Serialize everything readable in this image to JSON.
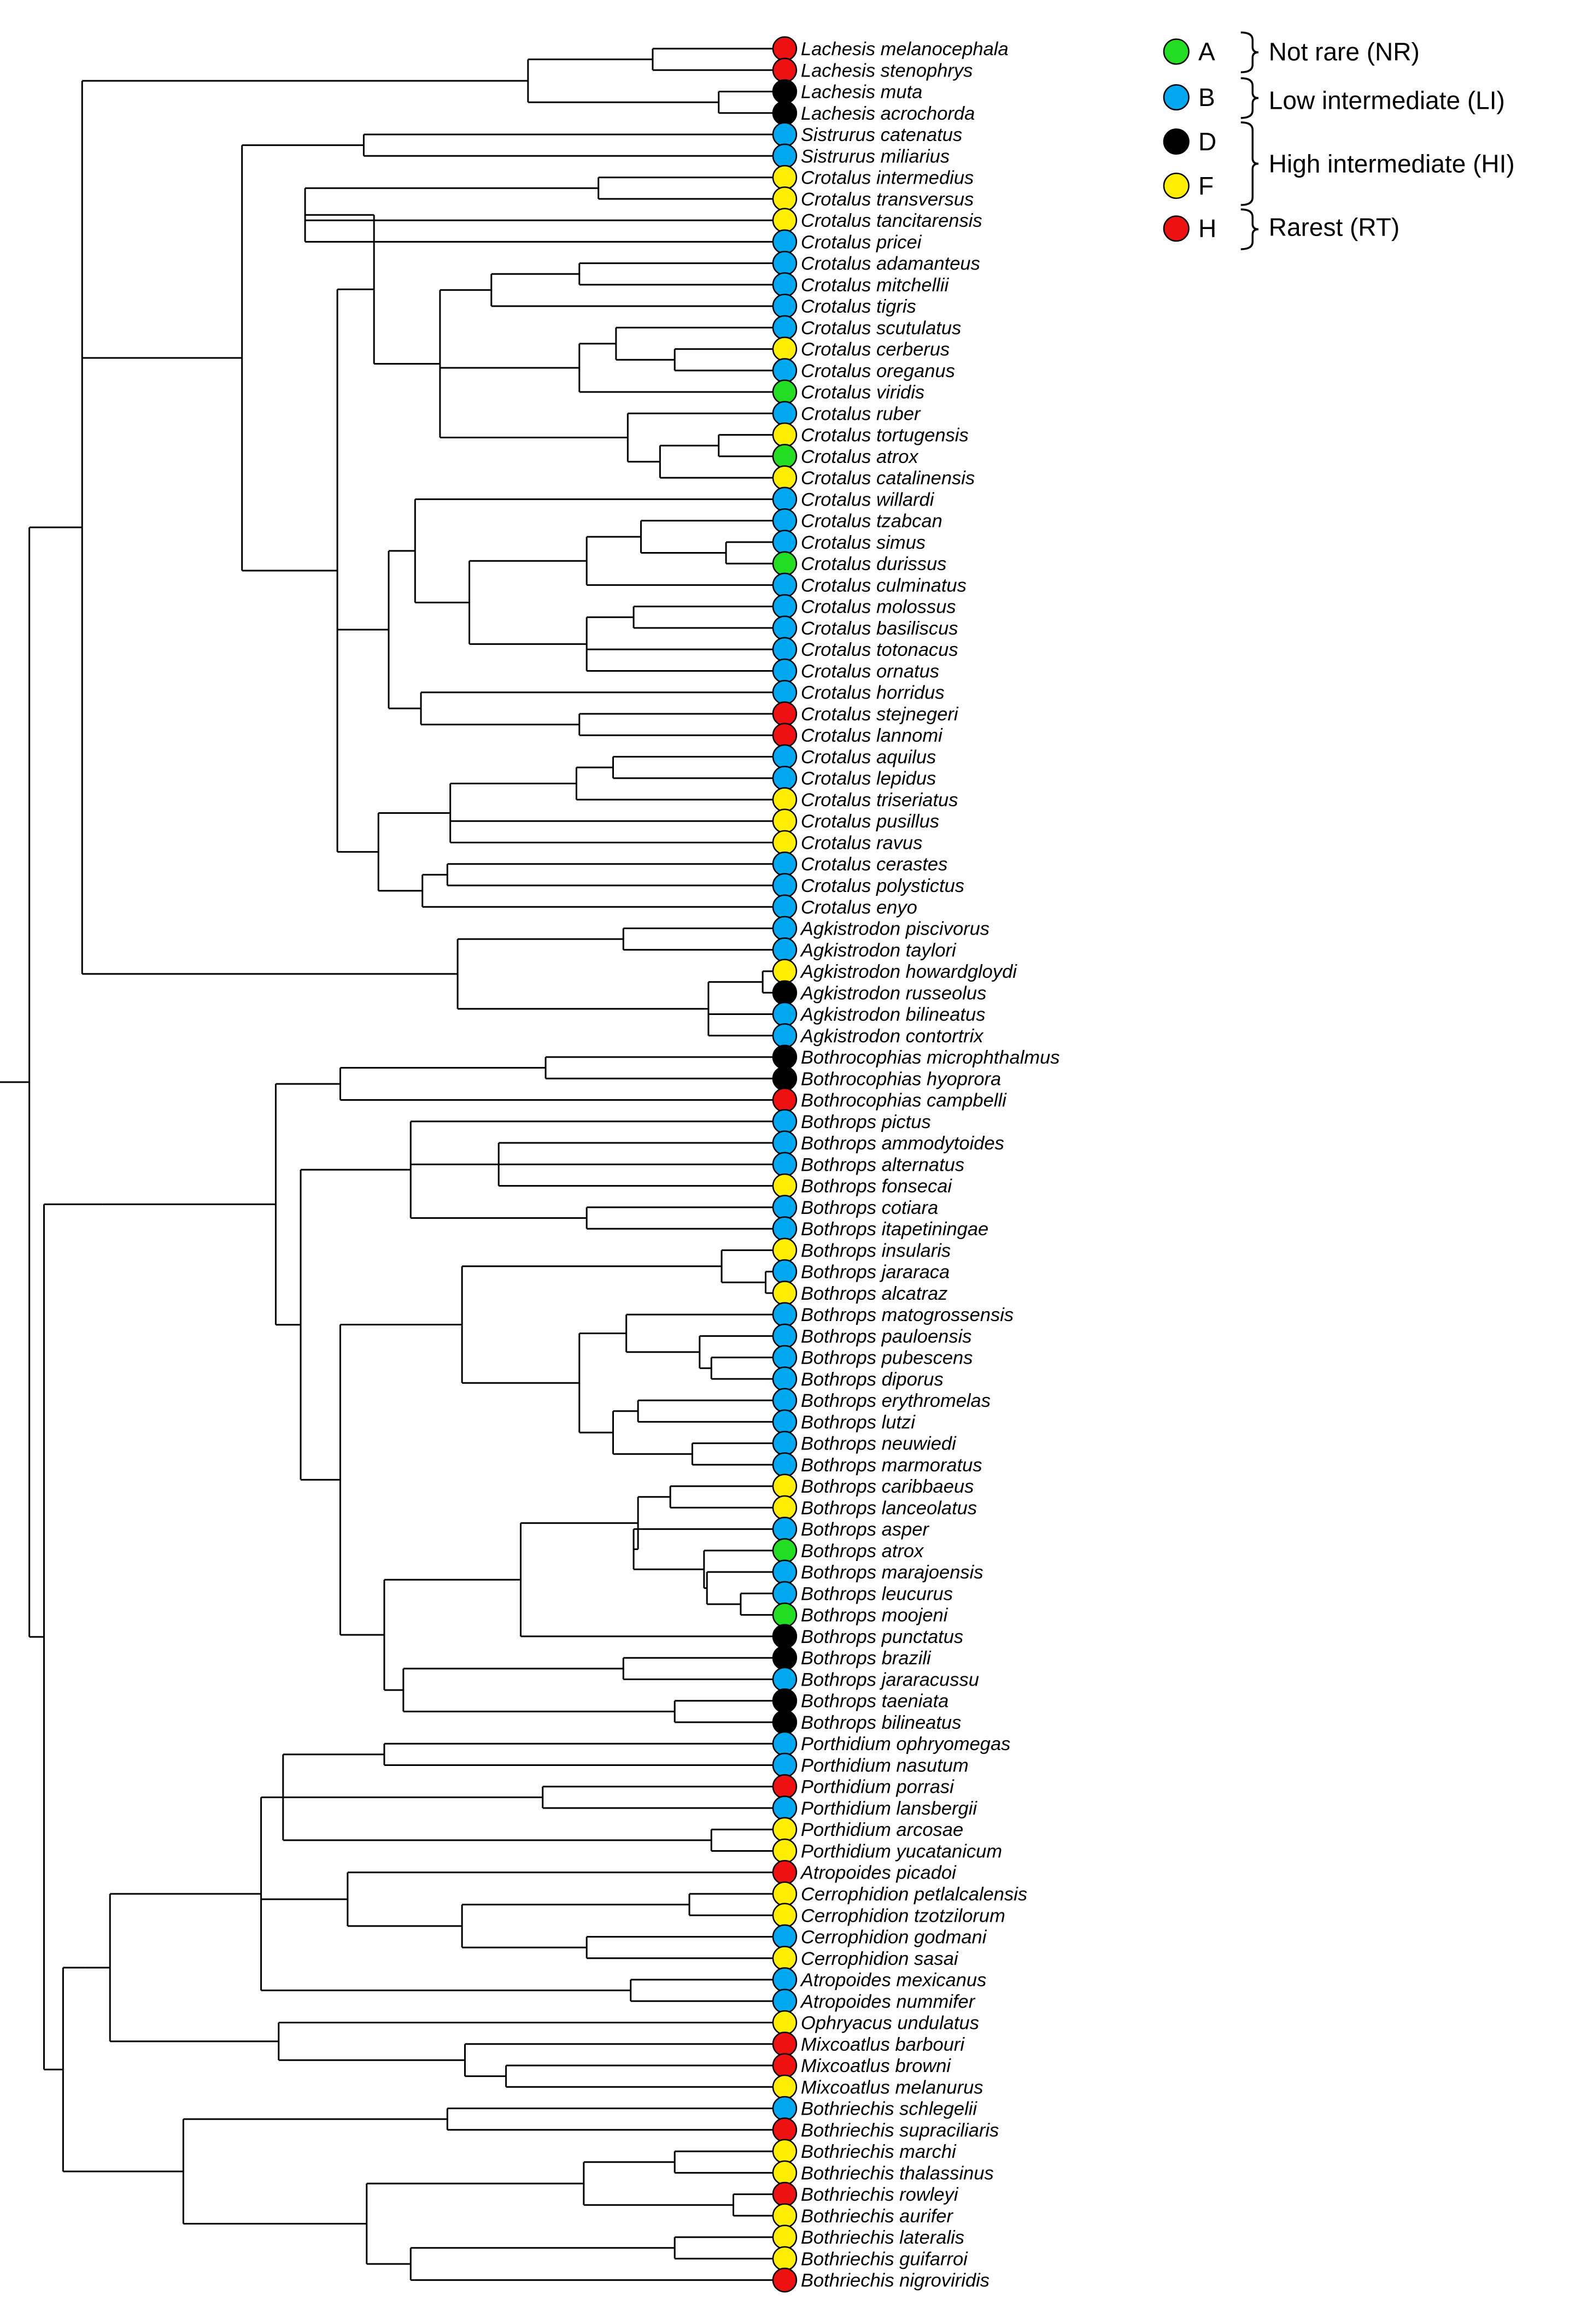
{
  "colors": {
    "A": "#22dd22",
    "B": "#00a8f0",
    "D": "#000000",
    "F": "#ffee00",
    "H": "#ee1111"
  },
  "legend": {
    "states": [
      {
        "code": "A",
        "label": "A"
      },
      {
        "code": "B",
        "label": "B"
      },
      {
        "code": "D",
        "label": "D"
      },
      {
        "code": "F",
        "label": "F"
      },
      {
        "code": "H",
        "label": "H"
      }
    ],
    "groups": [
      {
        "label": "Not rare (NR)",
        "codes": [
          "A"
        ]
      },
      {
        "label": "Low intermediate (LI)",
        "codes": [
          "B"
        ]
      },
      {
        "label": "High intermediate (HI)",
        "codes": [
          "D",
          "F"
        ]
      },
      {
        "label": "Rarest (RT)",
        "codes": [
          "H"
        ]
      }
    ]
  },
  "taxa": [
    {
      "name": "Lachesis melanocephala",
      "state": "H"
    },
    {
      "name": "Lachesis stenophrys",
      "state": "H"
    },
    {
      "name": "Lachesis muta",
      "state": "D"
    },
    {
      "name": "Lachesis acrochorda",
      "state": "D"
    },
    {
      "name": "Sistrurus catenatus",
      "state": "B"
    },
    {
      "name": "Sistrurus miliarius",
      "state": "B"
    },
    {
      "name": "Crotalus intermedius",
      "state": "F"
    },
    {
      "name": "Crotalus transversus",
      "state": "F"
    },
    {
      "name": "Crotalus tancitarensis",
      "state": "F"
    },
    {
      "name": "Crotalus pricei",
      "state": "B"
    },
    {
      "name": "Crotalus adamanteus",
      "state": "B"
    },
    {
      "name": "Crotalus mitchellii",
      "state": "B"
    },
    {
      "name": "Crotalus tigris",
      "state": "B"
    },
    {
      "name": "Crotalus scutulatus",
      "state": "B"
    },
    {
      "name": "Crotalus cerberus",
      "state": "F"
    },
    {
      "name": "Crotalus oreganus",
      "state": "B"
    },
    {
      "name": "Crotalus viridis",
      "state": "A"
    },
    {
      "name": "Crotalus ruber",
      "state": "B"
    },
    {
      "name": "Crotalus tortugensis",
      "state": "F"
    },
    {
      "name": "Crotalus atrox",
      "state": "A"
    },
    {
      "name": "Crotalus catalinensis",
      "state": "F"
    },
    {
      "name": "Crotalus willardi",
      "state": "B"
    },
    {
      "name": "Crotalus tzabcan",
      "state": "B"
    },
    {
      "name": "Crotalus simus",
      "state": "B"
    },
    {
      "name": "Crotalus durissus",
      "state": "A"
    },
    {
      "name": "Crotalus culminatus",
      "state": "B"
    },
    {
      "name": "Crotalus molossus",
      "state": "B"
    },
    {
      "name": "Crotalus basiliscus",
      "state": "B"
    },
    {
      "name": "Crotalus totonacus",
      "state": "B"
    },
    {
      "name": "Crotalus ornatus",
      "state": "B"
    },
    {
      "name": "Crotalus horridus",
      "state": "B"
    },
    {
      "name": "Crotalus stejnegeri",
      "state": "H"
    },
    {
      "name": "Crotalus lannomi",
      "state": "H"
    },
    {
      "name": "Crotalus aquilus",
      "state": "B"
    },
    {
      "name": "Crotalus lepidus",
      "state": "B"
    },
    {
      "name": "Crotalus triseriatus",
      "state": "F"
    },
    {
      "name": "Crotalus pusillus",
      "state": "F"
    },
    {
      "name": "Crotalus ravus",
      "state": "F"
    },
    {
      "name": "Crotalus cerastes",
      "state": "B"
    },
    {
      "name": "Crotalus polystictus",
      "state": "B"
    },
    {
      "name": "Crotalus enyo",
      "state": "B"
    },
    {
      "name": "Agkistrodon piscivorus",
      "state": "B"
    },
    {
      "name": "Agkistrodon taylori",
      "state": "B"
    },
    {
      "name": "Agkistrodon howardgloydi",
      "state": "F"
    },
    {
      "name": "Agkistrodon russeolus",
      "state": "D"
    },
    {
      "name": "Agkistrodon bilineatus",
      "state": "B"
    },
    {
      "name": "Agkistrodon contortrix",
      "state": "B"
    },
    {
      "name": "Bothrocophias microphthalmus",
      "state": "D"
    },
    {
      "name": "Bothrocophias hyoprora",
      "state": "D"
    },
    {
      "name": "Bothrocophias campbelli",
      "state": "H"
    },
    {
      "name": "Bothrops pictus",
      "state": "B"
    },
    {
      "name": "Bothrops ammodytoides",
      "state": "B"
    },
    {
      "name": "Bothrops alternatus",
      "state": "B"
    },
    {
      "name": "Bothrops fonsecai",
      "state": "F"
    },
    {
      "name": "Bothrops cotiara",
      "state": "B"
    },
    {
      "name": "Bothrops itapetiningae",
      "state": "B"
    },
    {
      "name": "Bothrops insularis",
      "state": "F"
    },
    {
      "name": "Bothrops jararaca",
      "state": "B"
    },
    {
      "name": "Bothrops alcatraz",
      "state": "F"
    },
    {
      "name": "Bothrops matogrossensis",
      "state": "B"
    },
    {
      "name": "Bothrops pauloensis",
      "state": "B"
    },
    {
      "name": "Bothrops pubescens",
      "state": "B"
    },
    {
      "name": "Bothrops diporus",
      "state": "B"
    },
    {
      "name": "Bothrops erythromelas",
      "state": "B"
    },
    {
      "name": "Bothrops lutzi",
      "state": "B"
    },
    {
      "name": "Bothrops neuwiedi",
      "state": "B"
    },
    {
      "name": "Bothrops marmoratus",
      "state": "B"
    },
    {
      "name": "Bothrops caribbaeus",
      "state": "F"
    },
    {
      "name": "Bothrops lanceolatus",
      "state": "F"
    },
    {
      "name": "Bothrops asper",
      "state": "B"
    },
    {
      "name": "Bothrops atrox",
      "state": "A"
    },
    {
      "name": "Bothrops marajoensis",
      "state": "B"
    },
    {
      "name": "Bothrops leucurus",
      "state": "B"
    },
    {
      "name": "Bothrops moojeni",
      "state": "A"
    },
    {
      "name": "Bothrops punctatus",
      "state": "D"
    },
    {
      "name": "Bothrops brazili",
      "state": "D"
    },
    {
      "name": "Bothrops jararacussu",
      "state": "B"
    },
    {
      "name": "Bothrops taeniata",
      "state": "D"
    },
    {
      "name": "Bothrops bilineatus",
      "state": "D"
    },
    {
      "name": "Porthidium ophryomegas",
      "state": "B"
    },
    {
      "name": "Porthidium nasutum",
      "state": "B"
    },
    {
      "name": "Porthidium porrasi",
      "state": "H"
    },
    {
      "name": "Porthidium lansbergii",
      "state": "B"
    },
    {
      "name": "Porthidium arcosae",
      "state": "F"
    },
    {
      "name": "Porthidium yucatanicum",
      "state": "F"
    },
    {
      "name": "Atropoides picadoi",
      "state": "H"
    },
    {
      "name": "Cerrophidion petlalcalensis",
      "state": "F"
    },
    {
      "name": "Cerrophidion tzotzilorum",
      "state": "F"
    },
    {
      "name": "Cerrophidion godmani",
      "state": "B"
    },
    {
      "name": "Cerrophidion sasai",
      "state": "F"
    },
    {
      "name": "Atropoides mexicanus",
      "state": "B"
    },
    {
      "name": "Atropoides nummifer",
      "state": "B"
    },
    {
      "name": "Ophryacus undulatus",
      "state": "F"
    },
    {
      "name": "Mixcoatlus barbouri",
      "state": "H"
    },
    {
      "name": "Mixcoatlus browni",
      "state": "H"
    },
    {
      "name": "Mixcoatlus melanurus",
      "state": "F"
    },
    {
      "name": "Bothriechis schlegelii",
      "state": "B"
    },
    {
      "name": "Bothriechis supraciliaris",
      "state": "H"
    },
    {
      "name": "Bothriechis marchi",
      "state": "F"
    },
    {
      "name": "Bothriechis thalassinus",
      "state": "F"
    },
    {
      "name": "Bothriechis rowleyi",
      "state": "H"
    },
    {
      "name": "Bothriechis aurifer",
      "state": "F"
    },
    {
      "name": "Bothriechis lateralis",
      "state": "F"
    },
    {
      "name": "Bothriechis guifarroi",
      "state": "F"
    },
    {
      "name": "Bothriechis nigroviridis",
      "state": "H"
    }
  ]
}
